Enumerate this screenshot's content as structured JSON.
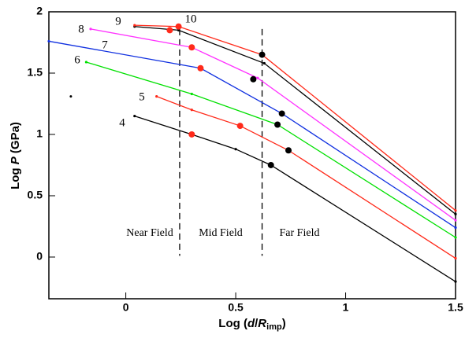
{
  "chart_data": {
    "type": "line",
    "ylabel_parts": [
      "Log ",
      "P",
      " (GPa)"
    ],
    "xlabel_parts": [
      "Log (",
      "d",
      "/",
      "R",
      "imp",
      ")"
    ],
    "xlim": [
      -0.35,
      1.5
    ],
    "ylim": [
      -0.34,
      2
    ],
    "xticks": [
      0,
      0.5,
      1,
      1.5
    ],
    "yticks": [
      0,
      0.5,
      1,
      1.5,
      2
    ],
    "series": [
      {
        "name": "4",
        "color": "#000000",
        "x": [
          0.04,
          0.3,
          0.5,
          0.66,
          1.5
        ],
        "values": [
          1.15,
          1.0,
          0.88,
          0.75,
          -0.2
        ]
      },
      {
        "name": "5",
        "color": "#ff2a1a",
        "x": [
          0.14,
          0.3,
          0.52,
          0.74,
          1.5
        ],
        "values": [
          1.31,
          1.2,
          1.07,
          0.87,
          -0.01
        ]
      },
      {
        "name": "6",
        "color": "#00e000",
        "x": [
          -0.18,
          0.3,
          0.69,
          1.5
        ],
        "values": [
          1.59,
          1.33,
          1.08,
          0.16
        ]
      },
      {
        "name": "7",
        "color": "#1030e0",
        "x": [
          -0.35,
          0.34,
          0.71,
          1.5
        ],
        "values": [
          1.76,
          1.54,
          1.17,
          0.24
        ]
      },
      {
        "name": "8",
        "color": "#ff33ff",
        "x": [
          -0.16,
          0.3,
          0.6,
          1.5
        ],
        "values": [
          1.86,
          1.71,
          1.46,
          0.3
        ]
      },
      {
        "name": "9",
        "color": "#000000",
        "x": [
          0.04,
          0.24,
          0.63,
          1.5
        ],
        "values": [
          1.88,
          1.85,
          1.58,
          0.35
        ]
      },
      {
        "name": "10",
        "color": "#ff2a1a",
        "x": [
          0.04,
          0.24,
          0.62,
          1.5
        ],
        "values": [
          1.89,
          1.88,
          1.65,
          0.38
        ]
      }
    ],
    "markers": {
      "x": [
        0.3,
        0.52,
        0.66,
        0.69,
        0.74,
        0.34,
        0.71,
        0.3,
        0.58,
        0.2,
        0.24,
        0.62,
        -0.25
      ],
      "values": [
        1.0,
        1.07,
        0.75,
        1.08,
        0.87,
        1.54,
        1.17,
        1.71,
        1.45,
        1.85,
        1.88,
        1.65,
        1.31
      ],
      "colors": [
        "#ff2a1a",
        "#ff2a1a",
        "#000000",
        "#000000",
        "#000000",
        "#ff2a1a",
        "#000000",
        "#ff2a1a",
        "#000000",
        "#ff2a1a",
        "#ff2a1a",
        "#000000",
        "#000000"
      ],
      "sizes": [
        4,
        4,
        4,
        4,
        4,
        4,
        4,
        4,
        4,
        4,
        4,
        4,
        1.5
      ]
    },
    "vlines": [
      0.245,
      0.62
    ],
    "region_labels": [
      "Near Field",
      "Mid Field",
      "Far Field"
    ]
  }
}
